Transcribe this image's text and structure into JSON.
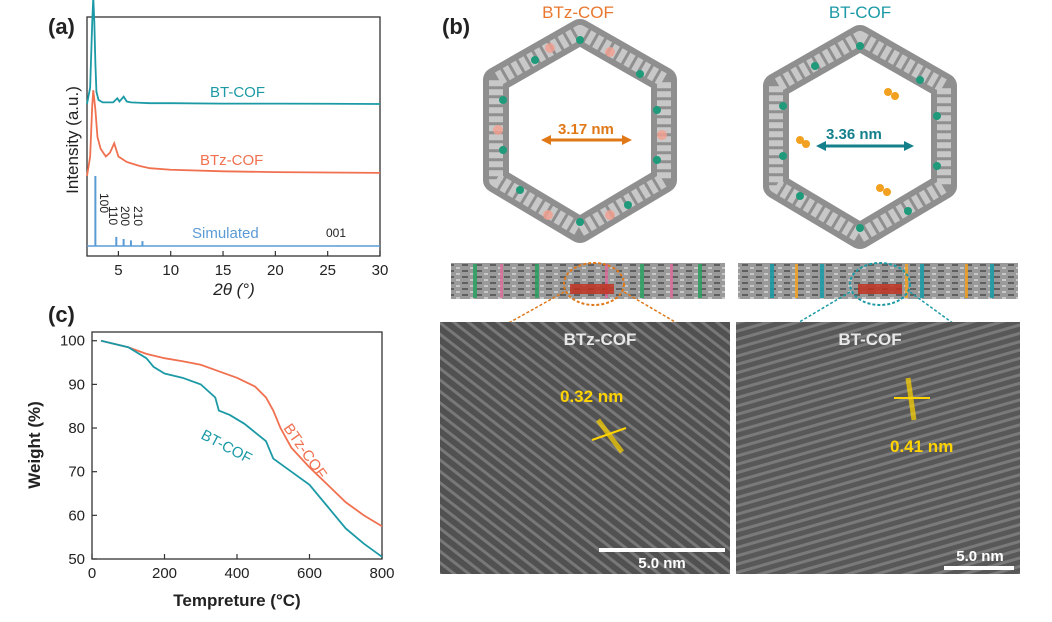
{
  "panels": {
    "a": {
      "label": "(a)"
    },
    "b": {
      "label": "(b)"
    },
    "c": {
      "label": "(c)"
    }
  },
  "chart_data": [
    {
      "panel": "a",
      "type": "line",
      "xlabel": "2θ (°)",
      "ylabel": "Intensity (a.u.)",
      "xlim": [
        2,
        30
      ],
      "xticks": [
        "5",
        "10",
        "15",
        "20",
        "25",
        "30"
      ],
      "series": [
        {
          "name": "BT-COF",
          "color": "#1b9aa6",
          "x": [
            2,
            2.3,
            2.5,
            2.6,
            2.7,
            2.8,
            2.9,
            3.1,
            3.5,
            4.5,
            4.9,
            5.1,
            5.5,
            5.8,
            6.2,
            7,
            8,
            10,
            15,
            20,
            25,
            30
          ],
          "y": [
            0.0,
            0.2,
            1.0,
            1.3,
            1.0,
            0.5,
            0.15,
            0.05,
            0.02,
            0.02,
            0.07,
            0.03,
            0.09,
            0.03,
            0.02,
            0.015,
            0.01,
            0.01,
            0.005,
            0.005,
            0.003,
            0.0
          ]
        },
        {
          "name": "BTz-COF",
          "color": "#f07050",
          "x": [
            2,
            2.3,
            2.5,
            2.6,
            2.8,
            3.0,
            3.3,
            3.8,
            4.2,
            4.6,
            5.0,
            5.8,
            7,
            8,
            10,
            15,
            20,
            25,
            30
          ],
          "y": [
            0.0,
            0.25,
            0.9,
            1.1,
            0.85,
            0.5,
            0.35,
            0.25,
            0.3,
            0.42,
            0.25,
            0.18,
            0.13,
            0.1,
            0.08,
            0.06,
            0.05,
            0.045,
            0.04
          ]
        },
        {
          "name": "Simulated",
          "color": "#5b9bd5",
          "x": [
            2.8,
            4.8,
            5.5,
            6.2,
            7.3,
            26.0
          ],
          "y": [
            1.0,
            0.13,
            0.1,
            0.08,
            0.07,
            0.01
          ]
        }
      ],
      "peak_labels": [
        "100",
        "110",
        "200",
        "210",
        "001"
      ]
    },
    {
      "panel": "c",
      "type": "line",
      "xlabel": "Tempreture (°C)",
      "ylabel": "Weight (%)",
      "xlim": [
        0,
        800
      ],
      "ylim": [
        50,
        102
      ],
      "xticks": [
        0,
        200,
        400,
        600,
        800
      ],
      "yticks": [
        50,
        60,
        70,
        80,
        90,
        100
      ],
      "series": [
        {
          "name": "BTz-COF",
          "color": "#f07050",
          "x": [
            25,
            100,
            150,
            200,
            250,
            300,
            350,
            400,
            450,
            480,
            500,
            520,
            550,
            600,
            650,
            700,
            750,
            800
          ],
          "y": [
            100,
            98.5,
            97,
            96,
            95.3,
            94.5,
            93,
            91.5,
            89.5,
            87,
            84,
            80,
            75.5,
            71,
            67,
            63,
            60,
            57.5
          ]
        },
        {
          "name": "BT-COF",
          "color": "#1b9aa6",
          "x": [
            25,
            100,
            150,
            170,
            200,
            250,
            300,
            340,
            350,
            380,
            420,
            450,
            480,
            500,
            550,
            600,
            650,
            700,
            750,
            800
          ],
          "y": [
            100,
            98.5,
            96,
            94,
            92.5,
            91.5,
            90,
            87,
            84,
            83,
            81,
            79,
            77,
            73,
            70,
            67,
            62,
            57,
            53.5,
            50.5
          ]
        }
      ]
    }
  ],
  "structures": {
    "btz": {
      "title": "BTz-COF",
      "pore": "3.17 nm",
      "title_color": "#e8782e",
      "arrow_color": "#e07818"
    },
    "bt": {
      "title": "BT-COF",
      "pore": "3.36 nm",
      "title_color": "#1b9aa6",
      "arrow_color": "#13808c"
    }
  },
  "tem": {
    "btz": {
      "label": "BTz-COF",
      "spacing": "0.32 nm",
      "scale": "5.0 nm"
    },
    "bt": {
      "label": "BT-COF",
      "spacing": "0.41 nm",
      "scale": "5.0 nm"
    }
  }
}
